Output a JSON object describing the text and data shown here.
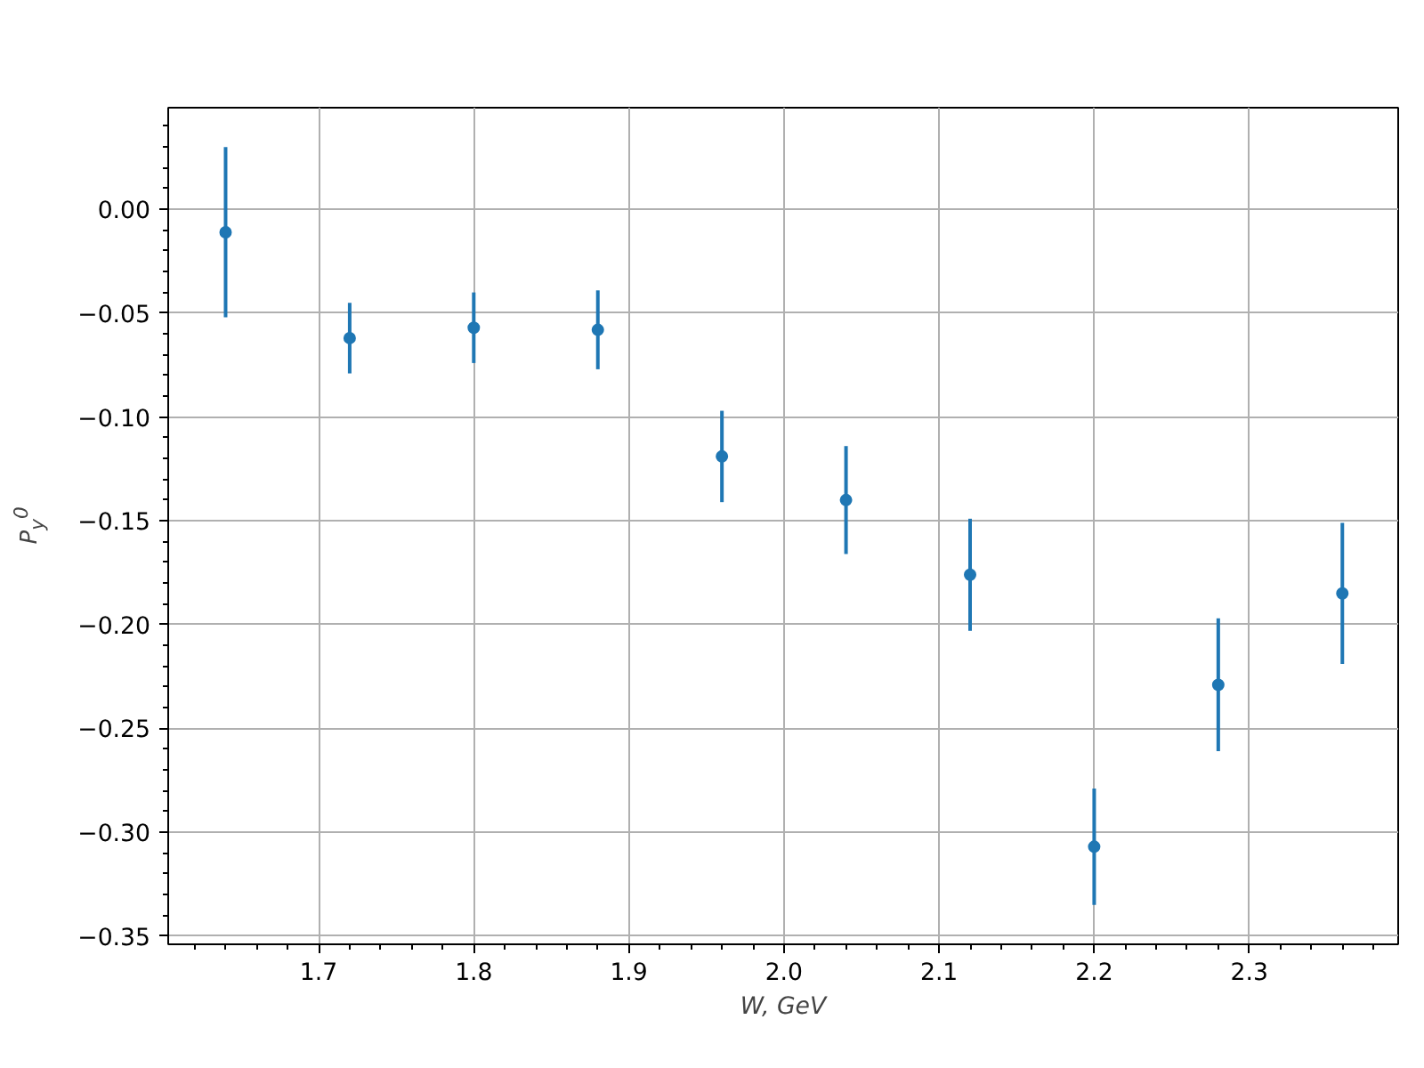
{
  "chart_data": {
    "type": "scatter",
    "xlabel": "W, GeV",
    "ylabel": "P$_{y}$$^{0}$",
    "x": [
      1.64,
      1.72,
      1.8,
      1.88,
      1.96,
      2.04,
      2.12,
      2.2,
      2.28,
      2.36
    ],
    "series": [
      {
        "color": "#1f77b4",
        "values": [
          -0.011,
          -0.062,
          -0.057,
          -0.058,
          -0.119,
          -0.14,
          -0.176,
          -0.307,
          -0.229,
          -0.185
        ],
        "errors": [
          0.041,
          0.017,
          0.017,
          0.019,
          0.022,
          0.026,
          0.027,
          0.028,
          0.032,
          0.034
        ]
      }
    ],
    "xlim": [
      1.603,
      2.396
    ],
    "ylim": [
      -0.354,
      0.049
    ],
    "xticks": [
      1.7,
      1.8,
      1.9,
      {
        "value": 2.0,
        "label": "2.0"
      },
      2.1,
      2.2,
      2.3
    ],
    "yticks": [
      {
        "value": 0,
        "label": "0.00"
      },
      -0.05,
      {
        "value": -0.1,
        "label": "−0.10"
      },
      {
        "value": -0.15,
        "label": "−0.15"
      },
      {
        "value": -0.2,
        "label": "−0.20"
      },
      {
        "value": -0.25,
        "label": "−0.25"
      },
      {
        "value": -0.3,
        "label": "−0.30"
      },
      {
        "value": -0.35,
        "label": "−0.35"
      }
    ],
    "grid": true,
    "marker": "circle"
  }
}
